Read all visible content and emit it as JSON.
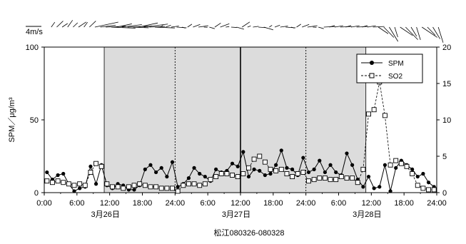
{
  "chart_data": {
    "type": "line",
    "title": "",
    "subtitle": "",
    "xlabel": "松江080326-080328",
    "ylabel": "SPM／μg/m³",
    "y2label": "",
    "wind_scale_label": "4m/s",
    "x_tick_labels": [
      "0:00",
      "6:00",
      "12:00",
      "18:00",
      "24:00",
      "6:00",
      "12:00",
      "18:00",
      "24:00",
      "6:00",
      "12:00",
      "18:00",
      "24:00"
    ],
    "date_labels": [
      {
        "text": "3月26日",
        "hour": 12
      },
      {
        "text": "3月27日",
        "hour": 36
      },
      {
        "text": "3月28日",
        "hour": 60
      }
    ],
    "x_range_hours": [
      0,
      72
    ],
    "ylim": [
      0,
      100
    ],
    "y_ticks": [
      0,
      50,
      100
    ],
    "y2lim": [
      0,
      20
    ],
    "y2_ticks": [
      0,
      5,
      10,
      15,
      20
    ],
    "grid": false,
    "legend_position": "top-right",
    "shaded_periods_hours": [
      [
        11,
        59
      ]
    ],
    "solid_vlines_hours": [
      36
    ],
    "dotted_vlines_hours": [
      24,
      48
    ],
    "series": [
      {
        "name": "SPM",
        "axis": "left",
        "marker": "filled-circle",
        "color": "#000000",
        "x": [
          0,
          1,
          2,
          3,
          4,
          5,
          6,
          7,
          8,
          9,
          10,
          11,
          12,
          13,
          14,
          15,
          16,
          17,
          18,
          19,
          20,
          21,
          22,
          23,
          24,
          25,
          26,
          27,
          28,
          29,
          30,
          31,
          32,
          33,
          34,
          35,
          36,
          37,
          38,
          39,
          40,
          41,
          42,
          43,
          44,
          45,
          46,
          47,
          48,
          49,
          50,
          51,
          52,
          53,
          54,
          55,
          56,
          57,
          58,
          59,
          60,
          61,
          62,
          63,
          64,
          65,
          66,
          67,
          68,
          69,
          70,
          71
        ],
        "values": [
          14,
          9,
          12,
          13,
          6,
          1,
          3,
          4,
          18,
          6,
          19,
          5,
          3,
          6,
          5,
          2,
          2,
          5,
          16,
          19,
          14,
          17,
          11,
          21,
          4,
          6,
          10,
          17,
          13,
          11,
          8,
          16,
          14,
          15,
          20,
          18,
          28,
          11,
          16,
          15,
          12,
          13,
          19,
          29,
          17,
          16,
          12,
          24,
          14,
          16,
          22,
          14,
          19,
          14,
          12,
          27,
          19,
          9,
          4,
          11,
          3,
          4,
          19,
          1,
          17,
          22,
          19,
          16,
          11,
          13,
          7,
          4
        ],
        "note": "values in μg/m³ on left axis"
      },
      {
        "name": "SO2",
        "axis": "right",
        "marker": "open-square",
        "color": "#000000",
        "x": [
          0,
          1,
          2,
          3,
          4,
          5,
          6,
          7,
          8,
          9,
          10,
          11,
          12,
          13,
          14,
          15,
          16,
          17,
          18,
          19,
          20,
          21,
          22,
          23,
          24,
          25,
          26,
          27,
          28,
          29,
          30,
          31,
          32,
          33,
          34,
          35,
          36,
          37,
          38,
          39,
          40,
          41,
          42,
          43,
          44,
          45,
          46,
          47,
          48,
          49,
          50,
          51,
          52,
          53,
          54,
          55,
          56,
          57,
          58,
          59,
          60,
          61,
          62,
          63,
          64,
          65,
          66,
          67,
          68,
          69,
          70,
          71
        ],
        "values": [
          1.6,
          1.4,
          1.6,
          1.4,
          1.2,
          1.0,
          1.2,
          1.0,
          2.8,
          4.0,
          3.6,
          1.2,
          0.8,
          0.8,
          0.6,
          0.8,
          1.0,
          1.2,
          1.0,
          0.8,
          0.8,
          0.6,
          0.6,
          0.6,
          0.2,
          1.0,
          1.2,
          1.2,
          1.0,
          1.2,
          1.8,
          2.2,
          2.6,
          2.6,
          2.4,
          2.2,
          2.6,
          3.4,
          4.6,
          5.0,
          4.2,
          3.2,
          3.0,
          3.2,
          2.6,
          2.2,
          2.6,
          2.8,
          1.6,
          1.8,
          2.0,
          2.0,
          1.8,
          1.8,
          2.2,
          2.0,
          2.0,
          1.4,
          3.2,
          10.8,
          11.4,
          15.2,
          10.6,
          3.8,
          4.4,
          4.0,
          3.6,
          2.6,
          1.0,
          0.6,
          0.4,
          0.4
        ],
        "note": "values in ppb-like units on right axis"
      }
    ]
  }
}
